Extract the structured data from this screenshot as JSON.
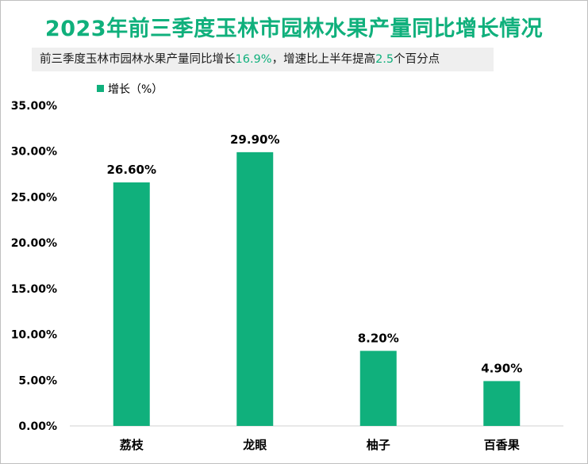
{
  "title": "2023年前三季度玉林市园林水果产量同比增长情况",
  "subtitle": {
    "part1": "前三季度玉林市园林水果产量同比增长",
    "value1": "16.9%",
    "part2": "，增速比上半年提高",
    "value2": "2.5",
    "part3": "个百分点"
  },
  "colors": {
    "bar": "#10b07c",
    "title": "#10b07c"
  },
  "chart_data": {
    "type": "bar",
    "categories": [
      "荔枝",
      "龙眼",
      "柚子",
      "百香果"
    ],
    "series": [
      {
        "name": "增长（%）",
        "values": [
          26.6,
          29.9,
          8.2,
          4.9
        ]
      }
    ],
    "data_labels": [
      "26.60%",
      "29.90%",
      "8.20%",
      "4.90%"
    ],
    "yticks": [
      "0.00%",
      "5.00%",
      "10.00%",
      "15.00%",
      "20.00%",
      "25.00%",
      "30.00%",
      "35.00%"
    ],
    "ylim": [
      0,
      35
    ],
    "grid": false,
    "legend": "top-left"
  }
}
